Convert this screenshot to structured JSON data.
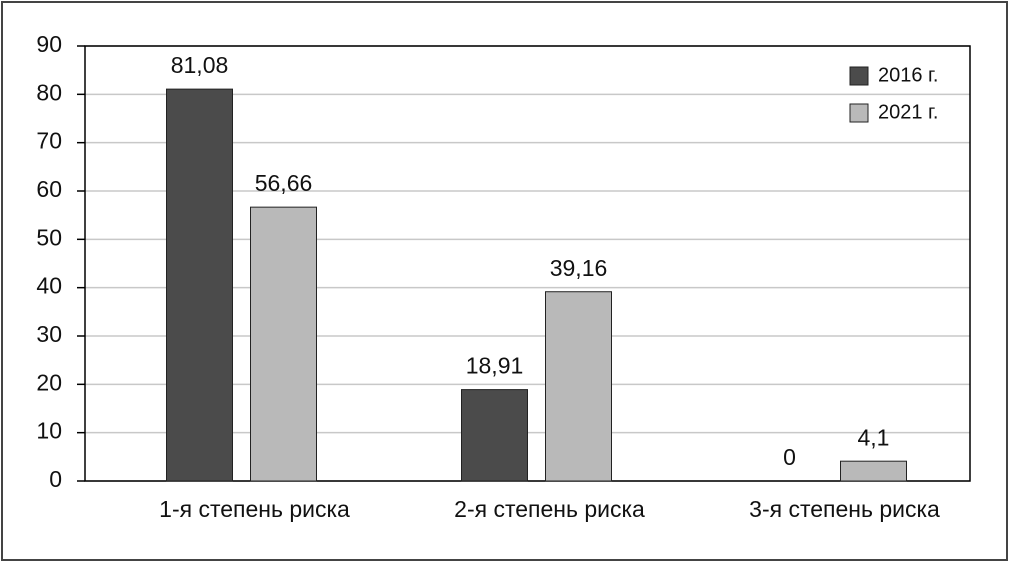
{
  "chart_data": {
    "type": "bar",
    "categories": [
      "1-я степень риска",
      "2-я степень риска",
      "3-я степень риска"
    ],
    "series": [
      {
        "name": "2016 г.",
        "color": "#4b4b4b",
        "values": [
          81.08,
          18.91,
          0
        ],
        "value_labels": [
          "81,08",
          "18,91",
          "0"
        ]
      },
      {
        "name": "2021 г.",
        "color": "#b9b9b9",
        "values": [
          56.66,
          39.16,
          4.1
        ],
        "value_labels": [
          "56,66",
          "39,16",
          "4,1"
        ]
      }
    ],
    "ylim": [
      0,
      90
    ],
    "yticks": [
      0,
      10,
      20,
      30,
      40,
      50,
      60,
      70,
      80,
      90
    ],
    "grid": true,
    "legend": "top-right"
  }
}
